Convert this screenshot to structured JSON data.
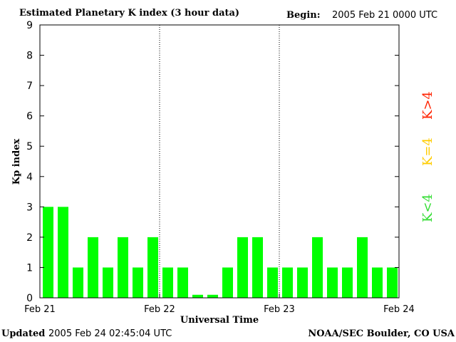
{
  "header": {
    "title": "Estimated Planetary K index (3 hour data)",
    "begin_label": "Begin:",
    "begin_value": "2005 Feb 21 0000 UTC"
  },
  "footer": {
    "updated_label": "Updated",
    "updated_value": "2005 Feb 24 02:45:04 UTC",
    "source": "NOAA/SEC Boulder, CO USA"
  },
  "chart_data": {
    "type": "bar",
    "title": "Estimated Planetary K index (3 hour data)",
    "xlabel": "Universal Time",
    "ylabel": "Kp index",
    "ylim": [
      0,
      9
    ],
    "yticks": [
      "0",
      "1",
      "2",
      "3",
      "4",
      "5",
      "6",
      "7",
      "8",
      "9"
    ],
    "xticks": [
      "Feb 21",
      "Feb 22",
      "Feb 23",
      "Feb 24"
    ],
    "values": [
      3,
      3,
      1,
      2,
      1,
      2,
      1,
      2,
      1,
      1,
      0.1,
      0.1,
      1,
      2,
      2,
      1,
      1,
      1,
      2,
      1,
      1,
      2,
      1,
      1
    ],
    "bar_color": "#00ff00",
    "legend": [
      {
        "label": "K<4",
        "color": "#33dd33"
      },
      {
        "label": "K=4",
        "color": "#ffcc00"
      },
      {
        "label": "K>4",
        "color": "#ff2200"
      }
    ],
    "legend_position": "right",
    "grid": false
  }
}
